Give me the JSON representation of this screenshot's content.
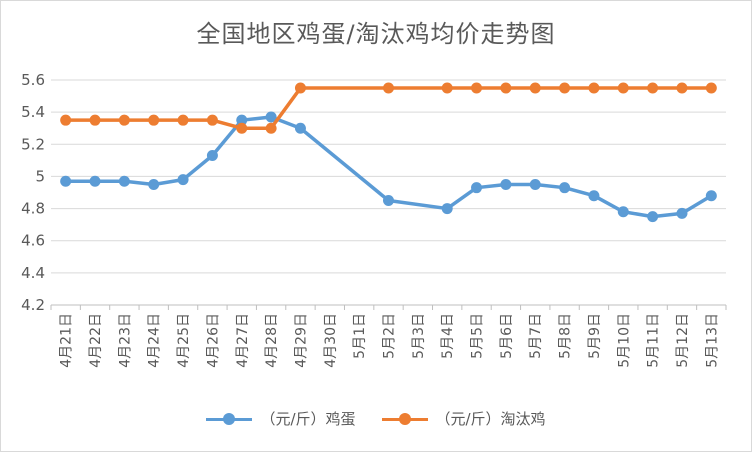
{
  "chart_data": {
    "type": "line",
    "title": "全国地区鸡蛋/淘汰鸡均价走势图",
    "categories": [
      "4月21日",
      "4月22日",
      "4月23日",
      "4月24日",
      "4月25日",
      "4月26日",
      "4月27日",
      "4月28日",
      "4月29日",
      "4月30日",
      "5月1日",
      "5月2日",
      "5月3日",
      "5月4日",
      "5月5日",
      "5月6日",
      "5月7日",
      "5月8日",
      "5月9日",
      "5月10日",
      "5月11日",
      "5月12日",
      "5月13日"
    ],
    "ylim": [
      4.2,
      5.6
    ],
    "yticks": [
      "4.2",
      "4.4",
      "4.6",
      "4.8",
      "5",
      "5.2",
      "5.4",
      "5.6"
    ],
    "grid": true,
    "legend_position": "bottom",
    "series": [
      {
        "name": "（元/斤）鸡蛋",
        "color": "#5b9bd5",
        "values": [
          4.97,
          4.97,
          4.97,
          4.95,
          4.98,
          5.13,
          5.35,
          5.37,
          5.3,
          null,
          null,
          4.85,
          null,
          4.8,
          4.93,
          4.95,
          4.95,
          4.93,
          4.88,
          4.78,
          4.75,
          4.77,
          4.88
        ]
      },
      {
        "name": "（元/斤）淘汰鸡",
        "color": "#ed7d31",
        "values": [
          5.35,
          5.35,
          5.35,
          5.35,
          5.35,
          5.35,
          5.3,
          5.3,
          5.55,
          null,
          null,
          5.55,
          null,
          5.55,
          5.55,
          5.55,
          5.55,
          5.55,
          5.55,
          5.55,
          5.55,
          5.55,
          5.55
        ]
      }
    ]
  }
}
